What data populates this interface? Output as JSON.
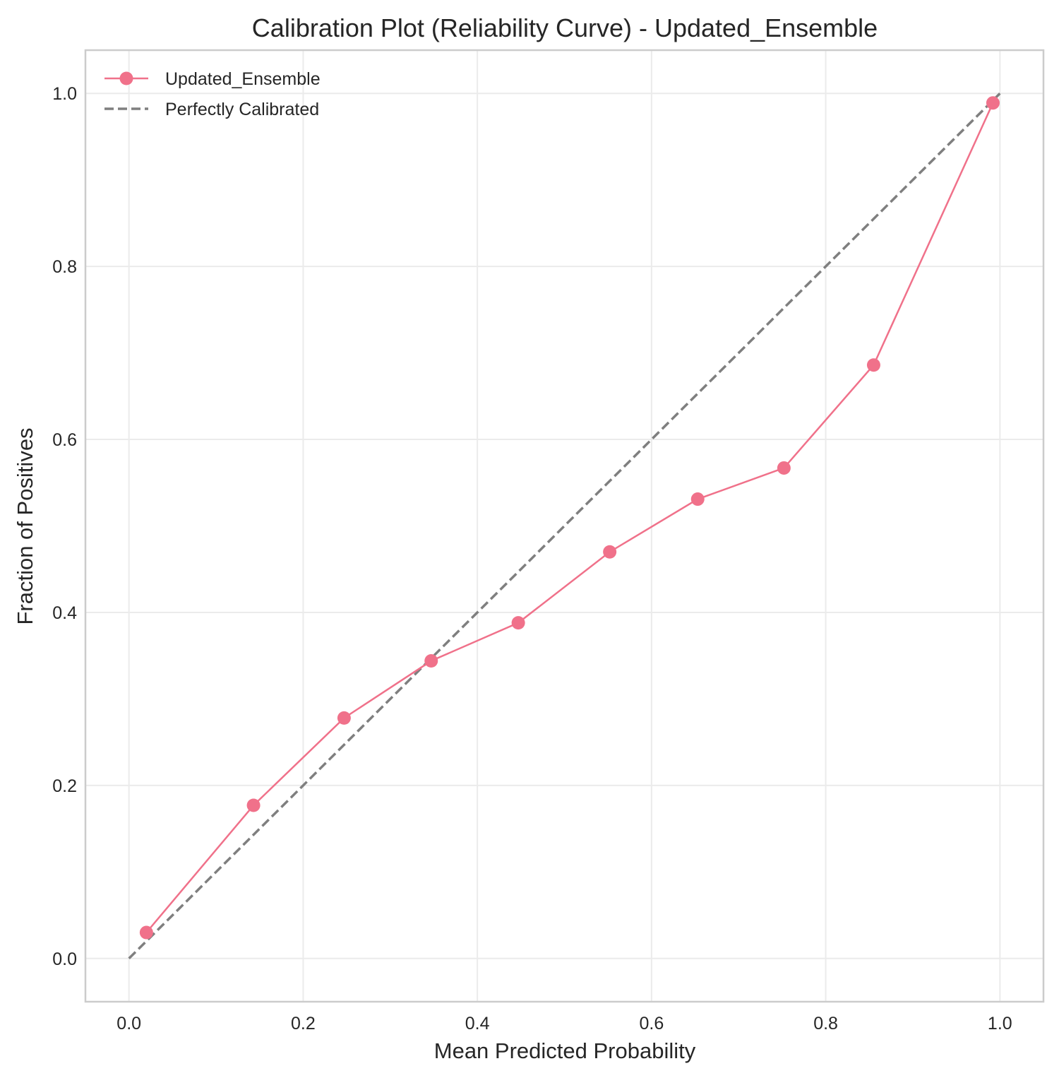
{
  "chart_data": {
    "type": "line",
    "title": "Calibration Plot (Reliability Curve) - Updated_Ensemble",
    "xlabel": "Mean Predicted Probability",
    "ylabel": "Fraction of Positives",
    "xlim": [
      -0.05,
      1.05
    ],
    "ylim": [
      -0.05,
      1.05
    ],
    "xticks": [
      0.0,
      0.2,
      0.4,
      0.6,
      0.8,
      1.0
    ],
    "yticks": [
      0.0,
      0.2,
      0.4,
      0.6,
      0.8,
      1.0
    ],
    "xtick_labels": [
      "0.0",
      "0.2",
      "0.4",
      "0.6",
      "0.8",
      "1.0"
    ],
    "ytick_labels": [
      "0.0",
      "0.2",
      "0.4",
      "0.6",
      "0.8",
      "1.0"
    ],
    "grid": true,
    "legend_position": "top-left",
    "series": [
      {
        "name": "Updated_Ensemble",
        "style": "solid line with circle markers",
        "color": "#f0718a",
        "x": [
          0.02,
          0.143,
          0.247,
          0.347,
          0.447,
          0.552,
          0.653,
          0.752,
          0.855,
          0.992
        ],
        "y": [
          0.03,
          0.177,
          0.278,
          0.344,
          0.388,
          0.47,
          0.531,
          0.567,
          0.686,
          0.989
        ]
      },
      {
        "name": "Perfectly Calibrated",
        "style": "dashed line",
        "color": "#7f7f7f",
        "x": [
          0.0,
          1.0
        ],
        "y": [
          0.0,
          1.0
        ]
      }
    ]
  }
}
